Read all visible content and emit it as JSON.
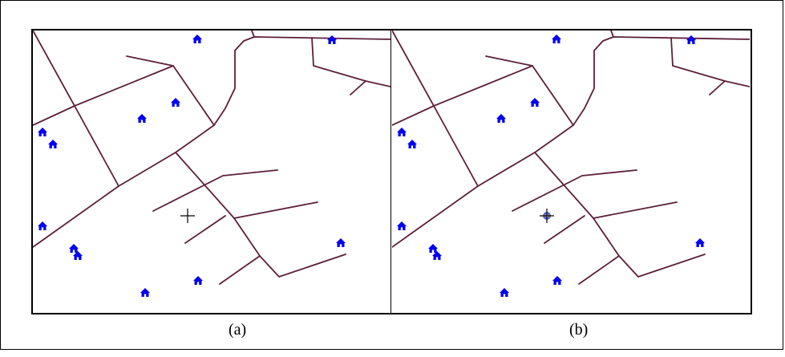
{
  "figure": {
    "captions": {
      "a": "(a)",
      "b": "(b)"
    }
  },
  "map": {
    "road_color": "#5c1f3a",
    "house_color": "#0000ee",
    "background": "#ffffff",
    "house_count": 12,
    "cursor": {
      "a": {
        "icon": "crosshair-icon",
        "style": "plain"
      },
      "b": {
        "icon": "crosshair-icon",
        "style": "highlighted-target"
      }
    },
    "cursor_highlight_color": "#3b4fd0"
  }
}
